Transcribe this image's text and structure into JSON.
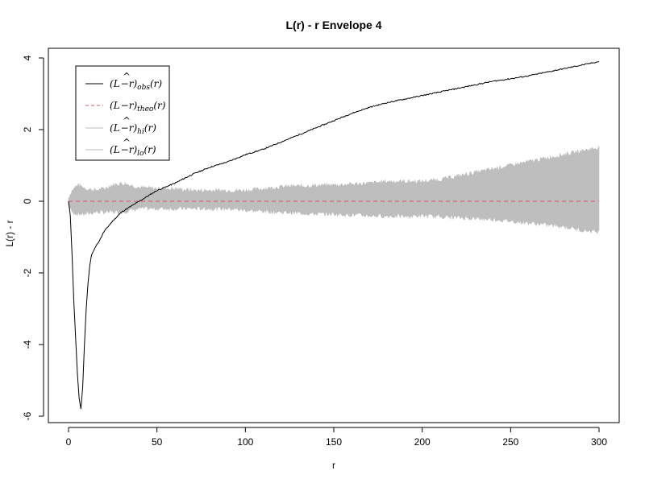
{
  "chart_data": {
    "type": "line",
    "title": "L(r) - r Envelope 4",
    "xlabel": "r",
    "ylabel": "L(r) - r",
    "xlim": [
      0,
      300
    ],
    "ylim": [
      -6,
      4
    ],
    "x_ticks": [
      0,
      50,
      100,
      150,
      200,
      250,
      300
    ],
    "y_ticks": [
      -6,
      -4,
      -2,
      0,
      2,
      4
    ],
    "grid": false,
    "legend_position": "top-left",
    "legend": [
      {
        "label": "(L̂ − r)obs(r)",
        "color": "#000000",
        "style": "solid"
      },
      {
        "label": "(L − r)theo(r)",
        "color": "#DF536B",
        "style": "dashed"
      },
      {
        "label": "(L̂ − r)hi(r)",
        "color": "#BEBEBE",
        "style": "solid"
      },
      {
        "label": "(L̂ − r)lo(r)",
        "color": "#BEBEBE",
        "style": "solid"
      }
    ],
    "series": [
      {
        "name": "obs",
        "color": "#000000",
        "points": [
          [
            0,
            0
          ],
          [
            1,
            -0.4
          ],
          [
            2,
            -1.5
          ],
          [
            3,
            -2.8
          ],
          [
            4,
            -3.8
          ],
          [
            5,
            -4.8
          ],
          [
            6,
            -5.5
          ],
          [
            7,
            -5.8
          ],
          [
            8,
            -5.2
          ],
          [
            9,
            -4.0
          ],
          [
            10,
            -3.0
          ],
          [
            11,
            -2.3
          ],
          [
            12,
            -1.8
          ],
          [
            13,
            -1.5
          ],
          [
            15,
            -1.3
          ],
          [
            18,
            -1.05
          ],
          [
            20,
            -0.85
          ],
          [
            25,
            -0.55
          ],
          [
            30,
            -0.3
          ],
          [
            35,
            -0.15
          ],
          [
            40,
            0.0
          ],
          [
            45,
            0.15
          ],
          [
            50,
            0.3
          ],
          [
            60,
            0.5
          ],
          [
            70,
            0.75
          ],
          [
            80,
            0.95
          ],
          [
            90,
            1.1
          ],
          [
            100,
            1.3
          ],
          [
            110,
            1.45
          ],
          [
            120,
            1.65
          ],
          [
            130,
            1.85
          ],
          [
            140,
            2.05
          ],
          [
            150,
            2.25
          ],
          [
            160,
            2.45
          ],
          [
            170,
            2.62
          ],
          [
            180,
            2.75
          ],
          [
            190,
            2.85
          ],
          [
            200,
            2.95
          ],
          [
            210,
            3.05
          ],
          [
            220,
            3.15
          ],
          [
            230,
            3.25
          ],
          [
            240,
            3.35
          ],
          [
            250,
            3.42
          ],
          [
            260,
            3.5
          ],
          [
            270,
            3.6
          ],
          [
            280,
            3.7
          ],
          [
            290,
            3.8
          ],
          [
            300,
            3.9
          ]
        ]
      },
      {
        "name": "theo",
        "color": "#DF536B",
        "points": [
          [
            0,
            0
          ],
          [
            300,
            0
          ]
        ]
      },
      {
        "name": "hi",
        "color": "#BEBEBE",
        "points": [
          [
            0,
            0.1
          ],
          [
            2,
            0.3
          ],
          [
            5,
            0.45
          ],
          [
            8,
            0.4
          ],
          [
            10,
            0.35
          ],
          [
            15,
            0.3
          ],
          [
            20,
            0.35
          ],
          [
            25,
            0.45
          ],
          [
            30,
            0.5
          ],
          [
            35,
            0.45
          ],
          [
            40,
            0.38
          ],
          [
            50,
            0.35
          ],
          [
            60,
            0.35
          ],
          [
            70,
            0.3
          ],
          [
            80,
            0.3
          ],
          [
            90,
            0.3
          ],
          [
            100,
            0.3
          ],
          [
            110,
            0.35
          ],
          [
            120,
            0.4
          ],
          [
            130,
            0.42
          ],
          [
            150,
            0.45
          ],
          [
            170,
            0.5
          ],
          [
            180,
            0.55
          ],
          [
            200,
            0.55
          ],
          [
            210,
            0.6
          ],
          [
            220,
            0.7
          ],
          [
            230,
            0.8
          ],
          [
            240,
            0.9
          ],
          [
            250,
            1.0
          ],
          [
            260,
            1.1
          ],
          [
            270,
            1.2
          ],
          [
            280,
            1.3
          ],
          [
            290,
            1.4
          ],
          [
            300,
            1.5
          ]
        ]
      },
      {
        "name": "lo",
        "color": "#BEBEBE",
        "points": [
          [
            0,
            -0.1
          ],
          [
            2,
            -0.3
          ],
          [
            5,
            -0.35
          ],
          [
            10,
            -0.35
          ],
          [
            15,
            -0.3
          ],
          [
            20,
            -0.3
          ],
          [
            30,
            -0.3
          ],
          [
            40,
            -0.2
          ],
          [
            50,
            -0.2
          ],
          [
            60,
            -0.2
          ],
          [
            70,
            -0.2
          ],
          [
            80,
            -0.2
          ],
          [
            90,
            -0.2
          ],
          [
            100,
            -0.25
          ],
          [
            120,
            -0.3
          ],
          [
            140,
            -0.35
          ],
          [
            150,
            -0.35
          ],
          [
            170,
            -0.4
          ],
          [
            190,
            -0.42
          ],
          [
            200,
            -0.4
          ],
          [
            220,
            -0.45
          ],
          [
            240,
            -0.5
          ],
          [
            250,
            -0.55
          ],
          [
            260,
            -0.6
          ],
          [
            270,
            -0.65
          ],
          [
            280,
            -0.7
          ],
          [
            290,
            -0.8
          ],
          [
            300,
            -0.85
          ]
        ]
      }
    ]
  }
}
